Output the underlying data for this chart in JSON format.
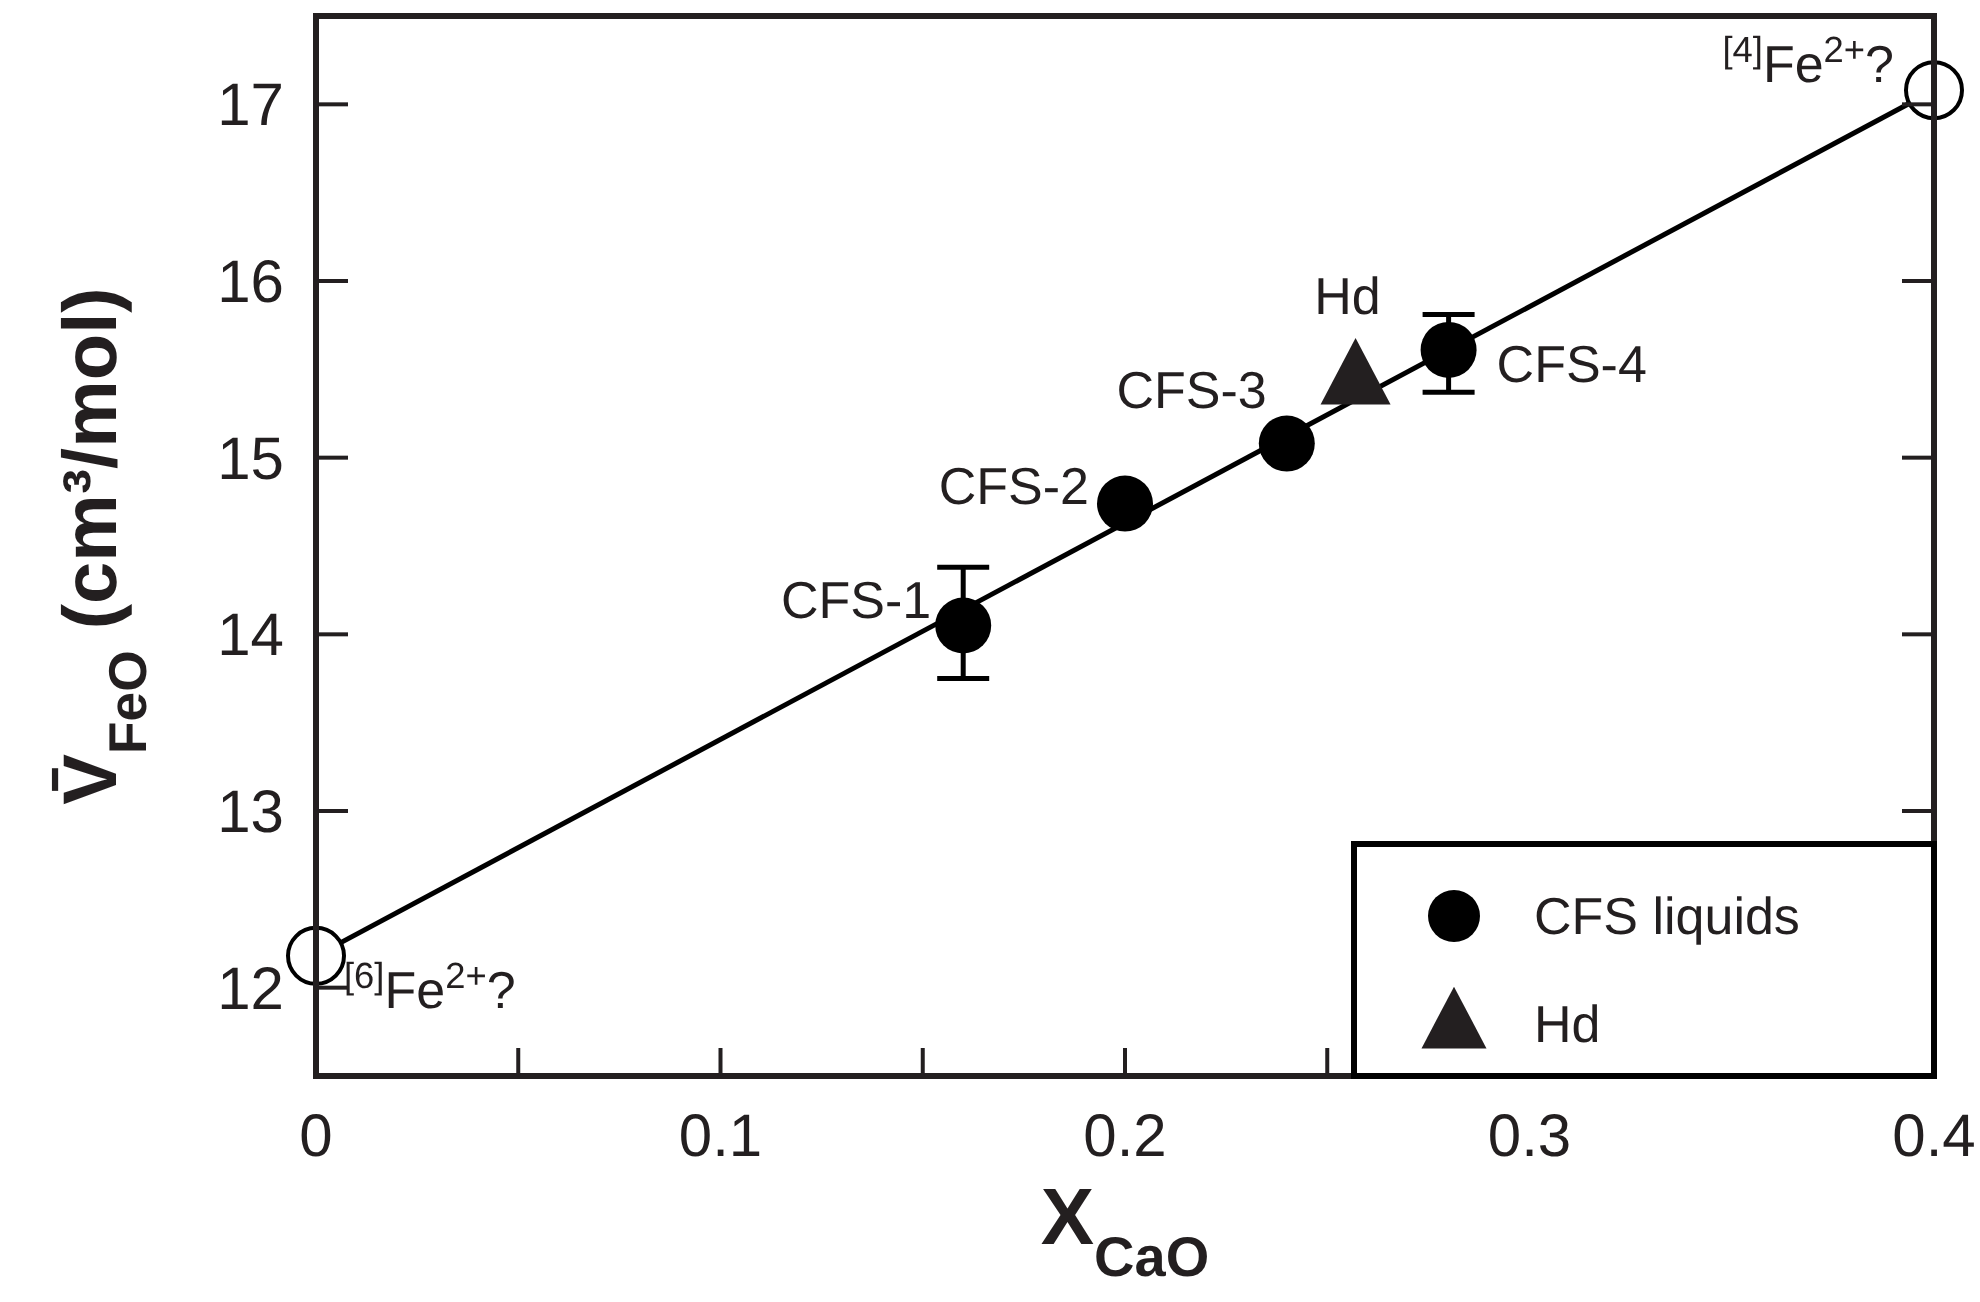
{
  "chart_data": {
    "type": "scatter",
    "xlabel": "X$_{CaO}$",
    "ylabel": "V̄$_{FeO}$ (cm³/mol)",
    "xlim": [
      0,
      0.4
    ],
    "ylim": [
      11.5,
      17.5
    ],
    "xticks": [
      0,
      {
        "value": 0.05,
        "label": null
      },
      0.1,
      {
        "value": 0.15,
        "label": null
      },
      0.2,
      {
        "value": 0.25,
        "label": null
      },
      0.3,
      {
        "value": 0.35,
        "label": null
      },
      0.4
    ],
    "yticks": [
      12,
      13,
      14,
      15,
      16,
      17
    ],
    "grid": false,
    "legend": "bottom right",
    "series": [
      {
        "type": "line",
        "x": [
          0,
          0.4
        ],
        "values": [
          12.18,
          17.08
        ],
        "color": "#000000",
        "marker": "none",
        "line_style": "solid"
      },
      {
        "x": [
          0,
          0.4
        ],
        "values": [
          12.18,
          17.08
        ],
        "color": "#ffffff",
        "marker": "circle"
      },
      {
        "name": "CFS liquids",
        "x": [
          0.16,
          0.2,
          0.24,
          0.28
        ],
        "values": [
          14.05,
          14.74,
          15.08,
          15.61
        ],
        "errors": [
          [
            13.75,
            14.38
          ],
          null,
          null,
          [
            15.37,
            15.81
          ]
        ],
        "color": "#000000",
        "marker": "circle"
      },
      {
        "name": "Hd",
        "x": [
          0.257
        ],
        "values": [
          15.45
        ],
        "color": "#231f20",
        "marker": "triangle"
      }
    ],
    "annotations": [
      {
        "text": "$^{[6]}$Fe$^{2+}$?",
        "x": 0,
        "y": 12.18
      },
      {
        "text": "$^{[4]}$Fe$^{2+}$?",
        "x": 0.4,
        "y": 17.08
      },
      {
        "text": "CFS-1",
        "x": 0.16,
        "y": 14.05
      },
      {
        "text": "CFS-2",
        "x": 0.2,
        "y": 14.74
      },
      {
        "text": "CFS-3",
        "x": 0.24,
        "y": 15.08
      },
      {
        "text": "Hd",
        "x": 0.257,
        "y": 15.45
      },
      {
        "text": "CFS-4",
        "x": 0.28,
        "y": 15.61
      }
    ]
  }
}
